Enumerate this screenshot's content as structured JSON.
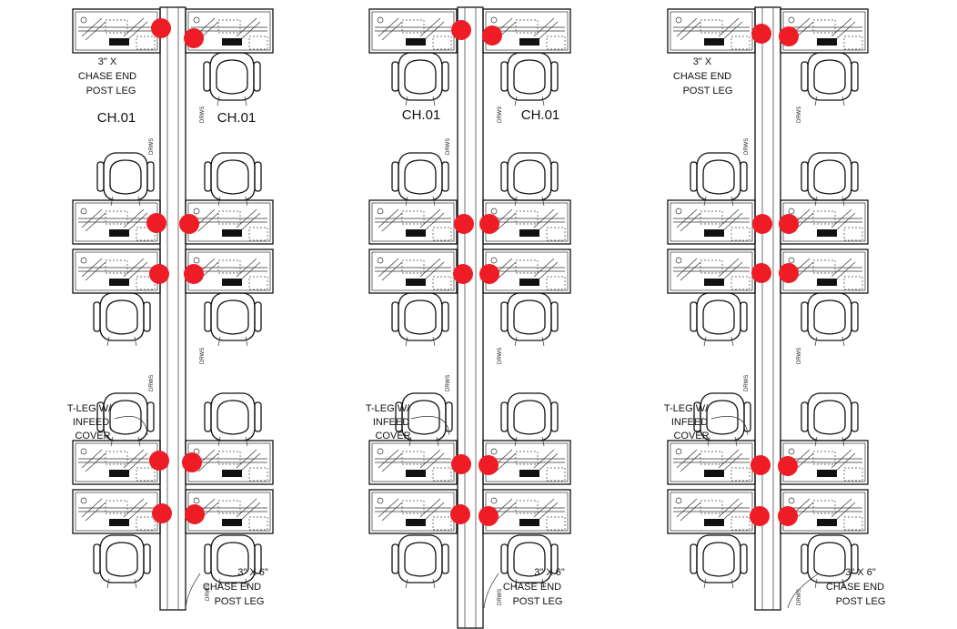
{
  "diagram": {
    "units": [
      {
        "id": "cluster-left",
        "labels": {
          "chase_end_top": [
            "3\" X",
            "CHASE END",
            "POST LEG"
          ],
          "chair_left": "CH.01",
          "chair_right": "CH.01",
          "t_leg": [
            "T-LEG W/",
            "INFEED",
            "COVER"
          ],
          "chase_end_bottom": [
            "3\" X 6\"",
            "CHASE END",
            "POST LEG"
          ]
        }
      },
      {
        "id": "cluster-middle",
        "labels": {
          "chair_left": "CH.01",
          "chair_right": "CH.01",
          "t_leg": [
            "T-LEG W/",
            "INFEED",
            "COVER"
          ],
          "chase_end_bottom": [
            "3\" X 6\"",
            "CHASE END",
            "POST LEG"
          ]
        }
      },
      {
        "id": "cluster-right",
        "labels": {
          "chase_end_top": [
            "3\" X",
            "CHASE END",
            "POST LEG"
          ],
          "t_leg": [
            "T-LEG W/",
            "INFEED",
            "COVER"
          ],
          "chase_end_bottom": [
            "3\" X 6\"",
            "CHASE END",
            "POST LEG"
          ]
        }
      }
    ],
    "small_labels": {
      "drawers": "DRWS"
    },
    "marker_color": "#ee1c25",
    "line_color": "#111111"
  }
}
